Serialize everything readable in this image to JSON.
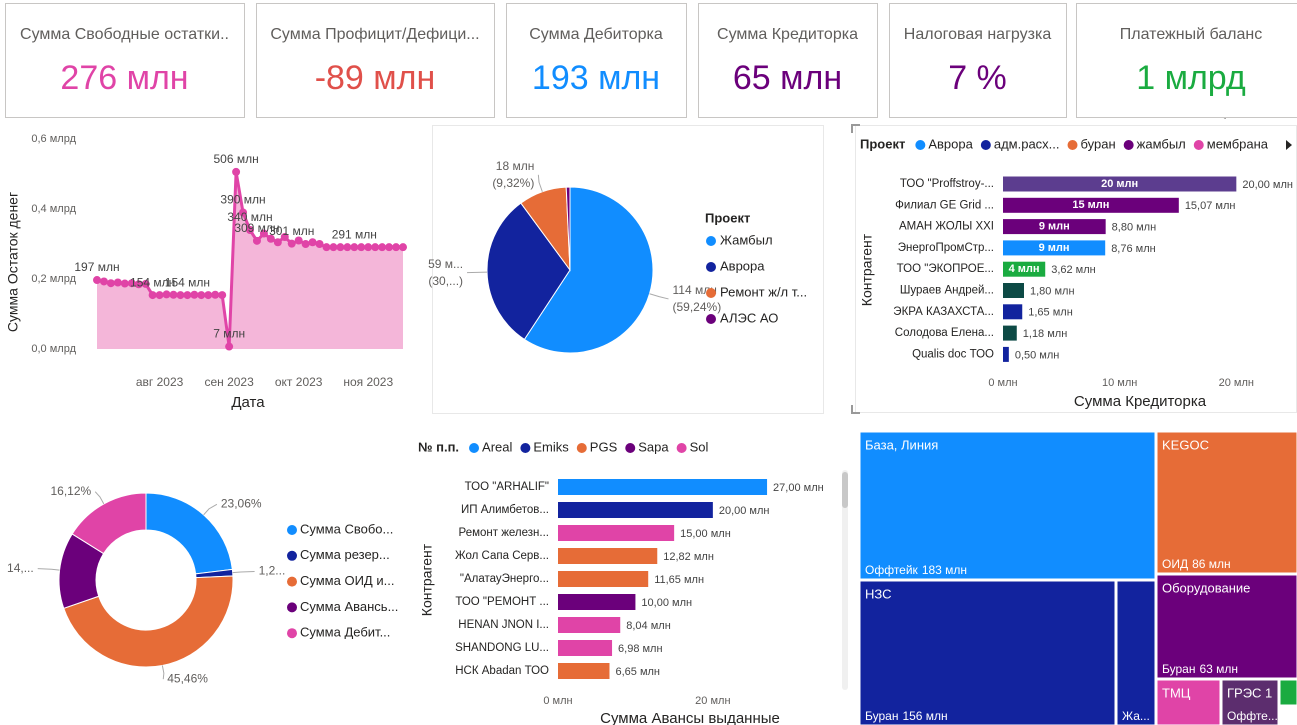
{
  "cards": [
    {
      "title": "Сумма Свободные остатки..",
      "value": "276 млн",
      "color": "#e044a7"
    },
    {
      "title": "Сумма Профицит/Дефици...",
      "value": "-89 млн",
      "color": "#e0504a"
    },
    {
      "title": "Сумма Дебиторка",
      "value": "193 млн",
      "color": "#118dff"
    },
    {
      "title": "Сумма Кредиторка",
      "value": "65 млн",
      "color": "#6b007b"
    },
    {
      "title": "Налоговая нагрузка",
      "value": "7 %",
      "color": "#6b007b"
    },
    {
      "title": "Платежный баланс",
      "value": "1 млрд",
      "color": "#1aab40"
    }
  ],
  "chart_data": [
    {
      "type": "area",
      "x_label": "Дата",
      "y_label": "Сумма Остаток денег",
      "color": "#e044a7",
      "fill": "#f4b6d9",
      "categories": [
        null,
        null,
        null,
        null,
        null,
        null,
        null,
        null,
        null,
        "авг 2023",
        null,
        null,
        null,
        null,
        null,
        null,
        null,
        null,
        null,
        "сен 2023",
        null,
        null,
        null,
        null,
        null,
        null,
        null,
        null,
        null,
        "окт 2023",
        null,
        null,
        null,
        null,
        null,
        null,
        null,
        null,
        null,
        "ноя 2023",
        null,
        null,
        null,
        null,
        null
      ],
      "values": [
        0.197,
        0.193,
        0.188,
        0.19,
        0.187,
        0.188,
        0.185,
        0.186,
        0.154,
        0.154,
        0.156,
        0.155,
        0.154,
        0.154,
        0.155,
        0.154,
        0.154,
        0.155,
        0.154,
        0.007,
        0.506,
        0.39,
        0.34,
        0.309,
        0.33,
        0.315,
        0.305,
        0.32,
        0.301,
        0.31,
        0.3,
        0.305,
        0.3,
        0.291,
        0.291,
        0.291,
        0.291,
        0.291,
        0.291,
        0.291,
        0.291,
        0.291,
        0.291,
        0.291,
        0.291
      ],
      "value_labels": [
        "197 млн",
        null,
        null,
        null,
        null,
        null,
        null,
        null,
        "154 млн",
        null,
        null,
        null,
        null,
        "154 млн",
        null,
        null,
        null,
        null,
        null,
        "7 млн",
        "506 млн",
        "390 млн",
        "340 млн",
        "309 млн",
        null,
        null,
        null,
        null,
        "301 млн",
        null,
        null,
        null,
        null,
        null,
        null,
        null,
        null,
        "291 млн",
        null,
        null,
        null,
        null,
        null,
        null,
        null
      ],
      "ylim": [
        0,
        0.6
      ],
      "yticks": [
        {
          "value": 0,
          "label": "0,0 млрд"
        },
        {
          "value": 0.2,
          "label": "0,2 млрд"
        },
        {
          "value": 0.4,
          "label": "0,4 млрд"
        },
        {
          "value": 0.6,
          "label": "0,6 млрд"
        }
      ]
    },
    {
      "type": "pie",
      "legend_title": "Проект",
      "categories": [
        "Жамбыл",
        "Аврора",
        "Ремонт ж/л т...",
        "АЛЭС АО"
      ],
      "colors": [
        "#118dff",
        "#12239e",
        "#e66c37",
        "#6b007b"
      ],
      "values": [
        114,
        59,
        18,
        1.4
      ],
      "value_labels": [
        "114 млн",
        "59 м...",
        "18 млн",
        null
      ],
      "percent_labels": [
        "(59,24%)",
        "(30,...)",
        "(9,32%)",
        null
      ]
    },
    {
      "type": "hbar",
      "legend_title": "Проект",
      "legend": [
        {
          "name": "Аврора",
          "color": "#118dff"
        },
        {
          "name": "адм.расх...",
          "color": "#12239e"
        },
        {
          "name": "буран",
          "color": "#e66c37"
        },
        {
          "name": "жамбыл",
          "color": "#6b007b"
        },
        {
          "name": "мембрана",
          "color": "#e044a7"
        }
      ],
      "x_label": "Сумма Кредиторка",
      "y_label": "Контрагент",
      "categories": [
        "ТОО \"Proffstroy-...",
        "Филиал GE Grid ...",
        "АМАН ЖОЛЫ XXI",
        "ЭнергоПромСтр...",
        "ТОО \"ЭКОПРОЕ...",
        "Шураев Андрей...",
        "ЭКРА КАЗАХСТА...",
        "Солодова Елена...",
        "Qualis doc ТОО"
      ],
      "values": [
        20,
        15.07,
        8.8,
        8.76,
        3.62,
        1.8,
        1.65,
        1.18,
        0.5
      ],
      "colors": [
        "#5c3d8f",
        "#6b007b",
        "#6b007b",
        "#118dff",
        "#1aab40",
        "#0d4a45",
        "#12239e",
        "#0d4a45",
        "#12239e"
      ],
      "inner_labels": [
        "20 млн",
        "15 млн",
        "9 млн",
        "9 млн",
        "4 млн",
        null,
        null,
        null,
        null
      ],
      "value_labels": [
        "20,00 млн",
        "15,07 млн",
        "8,80 млн",
        "8,76 млн",
        "3,62 млн",
        "1,80 млн",
        "1,65 млн",
        "1,18 млн",
        "0,50 млн"
      ],
      "xlim": [
        0,
        24
      ],
      "xticks": [
        {
          "value": 0,
          "label": "0 млн"
        },
        {
          "value": 10,
          "label": "10 млн"
        },
        {
          "value": 20,
          "label": "20 млн"
        }
      ]
    },
    {
      "type": "donut",
      "categories": [
        "Сумма Свобо...",
        "Сумма резер...",
        "Сумма ОИД и...",
        "Сумма Авансь...",
        "Сумма Дебит..."
      ],
      "colors": [
        "#118dff",
        "#12239e",
        "#e66c37",
        "#6b007b",
        "#e044a7"
      ],
      "values": [
        23.06,
        1.2,
        45.46,
        14.16,
        16.12
      ],
      "value_labels": [
        "23,06%",
        "1,2...",
        "45,46%",
        "14,...",
        "16,12%"
      ]
    },
    {
      "type": "hbar",
      "legend_title": "№ п.п.",
      "legend": [
        {
          "name": "Areal",
          "color": "#118dff"
        },
        {
          "name": "Emiks",
          "color": "#12239e"
        },
        {
          "name": "PGS",
          "color": "#e66c37"
        },
        {
          "name": "Sapa",
          "color": "#6b007b"
        },
        {
          "name": "Sol",
          "color": "#e044a7"
        }
      ],
      "x_label": "Сумма Авансы выданные",
      "y_label": "Контрагент",
      "categories": [
        "ТОО \"ARHALIF\"",
        "ИП Алимбетов...",
        "Ремонт железн...",
        "Жол Сапа Серв...",
        "\"АлатауЭнерго...",
        "ТОО \"РЕМОНТ ...",
        "HENAN JNON I...",
        "SHANDONG LU...",
        "НСК Abadan ТОО"
      ],
      "values": [
        27,
        20,
        15,
        12.82,
        11.65,
        10,
        8.04,
        6.98,
        6.65
      ],
      "colors": [
        "#118dff",
        "#12239e",
        "#e044a7",
        "#e66c37",
        "#e66c37",
        "#6b007b",
        "#e044a7",
        "#e044a7",
        "#e66c37"
      ],
      "value_labels": [
        "27,00 млн",
        "20,00 млн",
        "15,00 млн",
        "12,82 млн",
        "11,65 млн",
        "10,00 млн",
        "8,04 млн",
        "6,98 млн",
        "6,65 млн"
      ],
      "xlim": [
        0,
        35
      ],
      "xticks": [
        {
          "value": 0,
          "label": "0 млн"
        },
        {
          "value": 20,
          "label": "20 млн"
        }
      ]
    },
    {
      "type": "treemap",
      "groups": [
        {
          "name": "База, Линия",
          "items": [
            {
              "name": "Оффтейк",
              "value": 183,
              "value_label": "183 млн",
              "color": "#118dff"
            }
          ]
        },
        {
          "name": "KEGOC",
          "items": [
            {
              "name": "ОИД",
              "value": 86,
              "value_label": "86 млн",
              "color": "#e66c37"
            }
          ]
        },
        {
          "name": "НЗС",
          "items": [
            {
              "name": "Буран",
              "value": 156,
              "value_label": "156 млн",
              "color": "#12239e"
            },
            {
              "name": "Жа...",
              "value": 24,
              "color": "#12239e"
            }
          ]
        },
        {
          "name": "Оборудование",
          "items": [
            {
              "name": "Буран",
              "value": 63,
              "value_label": "63 млн",
              "color": "#6b007b"
            }
          ]
        },
        {
          "name": "ТМЦ",
          "items": [
            {
              "value": 12,
              "color": "#e044a7"
            }
          ]
        },
        {
          "name": "ГРЭС 1",
          "items": [
            {
              "name": "Оффте...",
              "value": 10,
              "color": "#5c2d6e"
            }
          ]
        },
        {
          "items": [
            {
              "value": 3,
              "color": "#1aab40"
            }
          ]
        }
      ]
    }
  ]
}
